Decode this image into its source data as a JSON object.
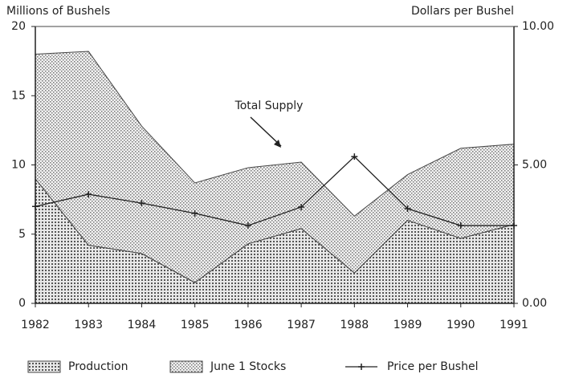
{
  "chart_data": {
    "type": "stacked_area_line",
    "y_label": "Millions of Bushels",
    "y2_label": "Dollars per Bushel",
    "annotation": "Total Supply",
    "categories": [
      "1982",
      "1983",
      "1984",
      "1985",
      "1986",
      "1987",
      "1988",
      "1989",
      "1990",
      "1991"
    ],
    "series": [
      {
        "name": "Production",
        "color": "#555555",
        "values": [
          9.0,
          4.2,
          3.6,
          1.5,
          4.3,
          5.4,
          2.2,
          6.0,
          4.7,
          5.7
        ]
      },
      {
        "name": "June 1 Stocks",
        "color": "#777777",
        "values": [
          9.0,
          14.0,
          9.2,
          7.2,
          5.5,
          4.8,
          4.1,
          3.3,
          6.5,
          5.8
        ]
      },
      {
        "name": "Price per Bushel",
        "color": "#222222",
        "axis": "y2",
        "values": [
          3.5,
          3.94,
          3.62,
          3.25,
          2.81,
          3.48,
          5.3,
          3.42,
          2.81,
          2.81
        ]
      }
    ],
    "ylim": [
      0,
      20
    ],
    "yticks": [
      0,
      5,
      10,
      15,
      20
    ],
    "y2lim": [
      0,
      10
    ],
    "y2ticks": [
      {
        "value": 0,
        "label": "0.00"
      },
      {
        "value": 5,
        "label": "5.00"
      },
      {
        "value": 10,
        "label": "10.00"
      }
    ]
  }
}
